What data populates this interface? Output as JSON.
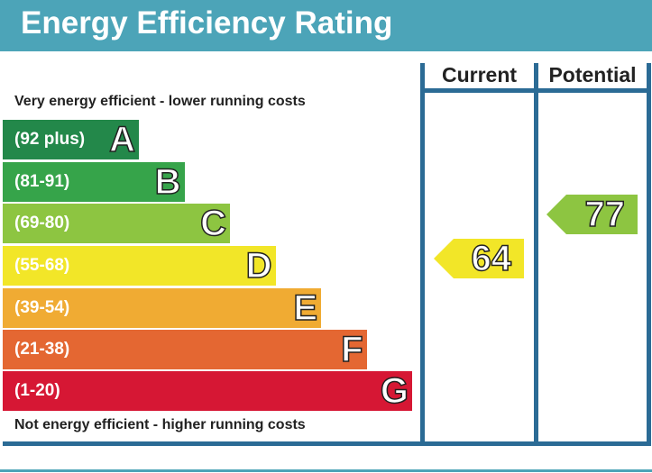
{
  "chart_data": {
    "type": "table",
    "title": "Energy Efficiency Rating",
    "top_note": "Very energy efficient - lower running costs",
    "bottom_note": "Not energy efficient - higher running costs",
    "columns": [
      "Current",
      "Potential"
    ],
    "bands": [
      {
        "letter": "A",
        "range": "(92 plus)",
        "color": "#23884a"
      },
      {
        "letter": "B",
        "range": "(81-91)",
        "color": "#36a44a"
      },
      {
        "letter": "C",
        "range": "(69-80)",
        "color": "#8dc541"
      },
      {
        "letter": "D",
        "range": "(55-68)",
        "color": "#f2e628"
      },
      {
        "letter": "E",
        "range": "(39-54)",
        "color": "#f0ab33"
      },
      {
        "letter": "F",
        "range": "(21-38)",
        "color": "#e46732"
      },
      {
        "letter": "G",
        "range": "(1-20)",
        "color": "#d61734"
      }
    ],
    "current": {
      "value": "64",
      "band": "D",
      "color": "#f2e628"
    },
    "potential": {
      "value": "77",
      "band": "C",
      "color": "#8dc541"
    }
  }
}
